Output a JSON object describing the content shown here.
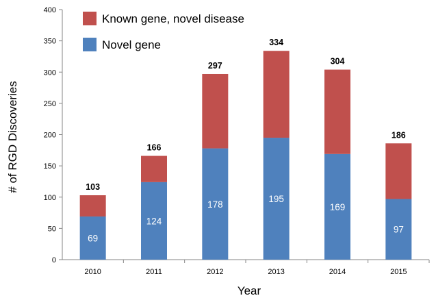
{
  "chart_data": {
    "type": "bar",
    "stacked": true,
    "categories": [
      "2010",
      "2011",
      "2012",
      "2013",
      "2014",
      "2015"
    ],
    "series": [
      {
        "name": "Novel gene",
        "color": "#4f81bd",
        "values": [
          69,
          124,
          178,
          195,
          169,
          97
        ]
      },
      {
        "name": "Known gene, novel disease",
        "color": "#c0504d",
        "values": [
          34,
          42,
          119,
          139,
          135,
          89
        ]
      }
    ],
    "totals": [
      103,
      166,
      297,
      334,
      304,
      186
    ],
    "inner_labels": [
      "69",
      "124",
      "178",
      "195",
      "169",
      "97"
    ],
    "total_labels": [
      "103",
      "166",
      "297",
      "334",
      "304",
      "186"
    ],
    "y_ticks": [
      "0",
      "50",
      "100",
      "150",
      "200",
      "250",
      "300",
      "350",
      "400"
    ],
    "ylim": [
      0,
      400
    ],
    "title": "",
    "xlabel": "Year",
    "ylabel": "# of RGD Discoveries",
    "legend": {
      "position": "top-left",
      "entries": [
        "Known gene, novel disease",
        "Novel gene"
      ]
    },
    "grid": false
  }
}
